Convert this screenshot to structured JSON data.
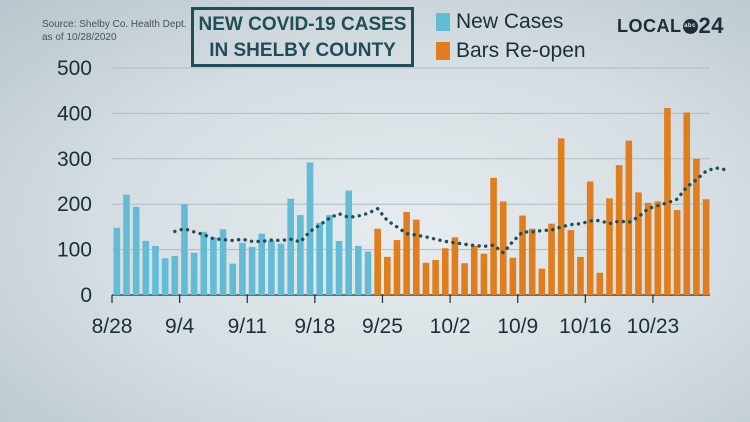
{
  "header": {
    "source": "Source:  Shelby Co. Health Dept.\nas of 10/28/2020",
    "title_line1": "NEW COVID-19 CASES",
    "title_line2": "IN SHELBY COUNTY",
    "logo_text_1": "LOCAL",
    "logo_text_badge": "abc",
    "logo_text_2": "24"
  },
  "chart_data": {
    "type": "bar",
    "title": "NEW COVID-19 CASES IN SHELBY COUNTY",
    "ylim": [
      0,
      500
    ],
    "yticks": [
      0,
      100,
      200,
      300,
      400,
      500
    ],
    "x_tick_labels": [
      "8/28",
      "9/4",
      "9/11",
      "9/18",
      "9/25",
      "10/2",
      "10/9",
      "10/16",
      "10/23"
    ],
    "x_tick_day_index": [
      0,
      7,
      14,
      21,
      28,
      35,
      42,
      49,
      56
    ],
    "grid": true,
    "legend_position": "top",
    "series": [
      {
        "name": "New Cases",
        "color": "#64bcd4",
        "start_day_index": 0,
        "values": [
          148,
          221,
          194,
          119,
          108,
          81,
          86,
          200,
          93,
          139,
          127,
          145,
          69,
          115,
          106,
          135,
          120,
          113,
          212,
          176,
          292,
          159,
          176,
          119,
          230,
          108,
          96
        ]
      },
      {
        "name": "Bars Re-open",
        "color": "#e07e1d",
        "start_day_index": 27,
        "values": [
          146,
          84,
          121,
          183,
          166,
          71,
          77,
          103,
          127,
          70,
          108,
          91,
          258,
          206,
          82,
          175,
          146,
          58,
          157,
          345,
          143,
          84,
          250,
          49,
          213,
          286,
          340,
          226,
          203,
          206,
          412,
          187,
          402,
          300,
          211
        ]
      }
    ],
    "moving_average": {
      "style": "dotted",
      "color": "#1f4e58",
      "start_day_index": 6,
      "values": [
        140,
        146,
        139,
        133,
        124,
        122,
        120,
        123,
        118,
        118,
        121,
        120,
        123,
        117,
        140,
        154,
        169,
        179,
        171,
        174,
        180,
        190,
        164,
        150,
        135,
        132,
        128,
        123,
        118,
        115,
        112,
        109,
        107,
        110,
        93,
        118,
        139,
        139,
        142,
        143,
        150,
        155,
        157,
        163,
        164,
        157,
        163,
        160,
        172,
        190,
        197,
        203,
        211,
        238,
        254,
        273,
        280,
        276
      ]
    }
  }
}
